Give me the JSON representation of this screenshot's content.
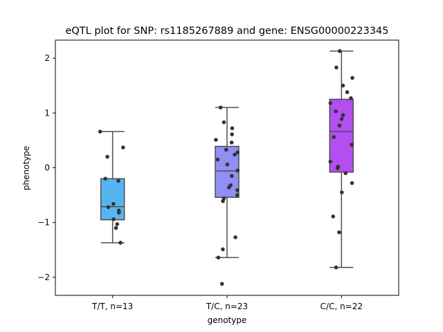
{
  "chart_data": {
    "type": "box",
    "title": "eQTL plot for SNP: rs1185267889 and gene: ENSG00000223345",
    "xlabel": "genotype",
    "ylabel": "phenotype",
    "ylim": [
      -2.33,
      2.33
    ],
    "yticks": [
      -2,
      -1,
      0,
      1,
      2
    ],
    "grid": false,
    "categories": [
      "T/T, n=13",
      "T/C, n=23",
      "C/C, n=22"
    ],
    "colors": [
      "#56b4f0",
      "#8f8ff5",
      "#b44ef0"
    ],
    "point_color": "#333333",
    "boxes": [
      {
        "whisker_low": -1.37,
        "q1": -0.95,
        "median": -0.71,
        "q3": -0.2,
        "whisker_high": 0.66
      },
      {
        "whisker_low": -1.64,
        "q1": -0.54,
        "median": -0.06,
        "q3": 0.39,
        "whisker_high": 1.1
      },
      {
        "whisker_low": -1.82,
        "q1": -0.08,
        "median": 0.66,
        "q3": 1.25,
        "whisker_high": 2.13
      }
    ],
    "points": [
      [
        0.66,
        0.37,
        0.2,
        -0.2,
        -0.24,
        -0.66,
        -0.72,
        -0.78,
        -0.82,
        -0.94,
        -1.03,
        -1.1,
        -1.37
      ],
      [
        1.1,
        0.83,
        0.72,
        0.61,
        0.51,
        0.46,
        0.33,
        0.28,
        0.24,
        0.15,
        0.06,
        -0.05,
        -0.15,
        -0.32,
        -0.36,
        -0.41,
        -0.5,
        -0.56,
        -0.61,
        -1.27,
        -1.49,
        -1.64,
        -2.12
      ],
      [
        2.13,
        1.83,
        1.64,
        1.5,
        1.38,
        1.27,
        1.18,
        1.03,
        0.96,
        0.89,
        0.77,
        0.56,
        0.42,
        0.11,
        0.02,
        -0.01,
        -0.1,
        -0.28,
        -0.45,
        -0.89,
        -1.18,
        -1.82
      ]
    ]
  }
}
